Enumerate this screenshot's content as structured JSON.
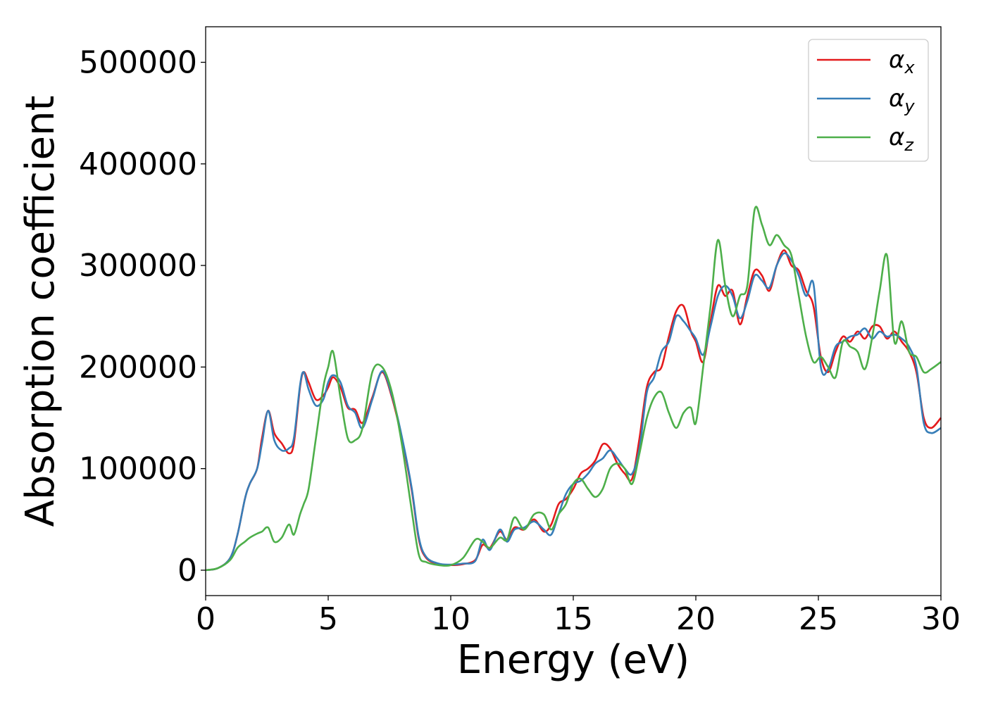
{
  "chart_data": {
    "type": "line",
    "xlabel": "Energy (eV)",
    "ylabel": "Absorption coefficient",
    "xlim": [
      0,
      30
    ],
    "ylim": [
      -25000,
      535000
    ],
    "xticks": [
      0,
      5,
      10,
      15,
      20,
      25,
      30
    ],
    "yticks": [
      0,
      100000,
      200000,
      300000,
      400000,
      500000
    ],
    "grid": false,
    "legend_position": "top-right",
    "series": [
      {
        "name": "α_x",
        "label_base": "α",
        "label_sub": "x",
        "color": "#e41a1c",
        "x": [
          0,
          0.5,
          1.0,
          1.3,
          1.6,
          1.8,
          2.1,
          2.3,
          2.55,
          2.8,
          3.1,
          3.4,
          3.6,
          3.85,
          4.0,
          4.2,
          4.5,
          4.8,
          5.0,
          5.2,
          5.5,
          5.8,
          6.1,
          6.4,
          6.8,
          7.2,
          7.6,
          8.0,
          8.4,
          8.7,
          9.0,
          9.5,
          10.0,
          10.5,
          11.0,
          11.3,
          11.6,
          12.0,
          12.3,
          12.6,
          13.0,
          13.4,
          13.8,
          14.1,
          14.4,
          14.7,
          15.0,
          15.3,
          15.6,
          15.9,
          16.2,
          16.5,
          16.8,
          17.1,
          17.4,
          17.7,
          18.0,
          18.3,
          18.6,
          18.9,
          19.2,
          19.5,
          19.8,
          20.0,
          20.3,
          20.6,
          20.9,
          21.2,
          21.5,
          21.8,
          22.1,
          22.4,
          22.7,
          23.0,
          23.3,
          23.6,
          23.9,
          24.2,
          24.5,
          24.8,
          25.1,
          25.4,
          25.7,
          26.0,
          26.3,
          26.6,
          26.9,
          27.2,
          27.5,
          27.8,
          28.1,
          28.4,
          28.7,
          29.0,
          29.3,
          29.6,
          30.0
        ],
        "values": [
          0,
          2000,
          12000,
          35000,
          70000,
          85000,
          100000,
          130000,
          157000,
          135000,
          125000,
          115000,
          125000,
          180000,
          195000,
          185000,
          168000,
          172000,
          180000,
          190000,
          180000,
          160000,
          158000,
          145000,
          170000,
          195000,
          170000,
          130000,
          80000,
          30000,
          12000,
          6000,
          5000,
          6000,
          10000,
          25000,
          22000,
          38000,
          30000,
          42000,
          40000,
          50000,
          38000,
          45000,
          65000,
          70000,
          80000,
          95000,
          100000,
          108000,
          124000,
          120000,
          105000,
          95000,
          90000,
          130000,
          180000,
          195000,
          200000,
          230000,
          255000,
          260000,
          235000,
          225000,
          205000,
          245000,
          280000,
          270000,
          275000,
          242000,
          270000,
          295000,
          290000,
          275000,
          300000,
          315000,
          300000,
          295000,
          275000,
          260000,
          210000,
          195000,
          215000,
          230000,
          225000,
          235000,
          228000,
          240000,
          240000,
          228000,
          235000,
          225000,
          215000,
          195000,
          150000,
          140000,
          150000
        ]
      },
      {
        "name": "α_y",
        "label_base": "α",
        "label_sub": "y",
        "color": "#377eb8",
        "x": [
          0,
          0.5,
          1.0,
          1.3,
          1.6,
          1.8,
          2.1,
          2.3,
          2.55,
          2.8,
          3.1,
          3.4,
          3.6,
          3.85,
          4.0,
          4.2,
          4.5,
          4.8,
          5.0,
          5.2,
          5.5,
          5.8,
          6.1,
          6.4,
          6.8,
          7.2,
          7.6,
          8.0,
          8.4,
          8.7,
          9.0,
          9.5,
          10.0,
          10.5,
          11.0,
          11.3,
          11.6,
          12.0,
          12.3,
          12.6,
          13.0,
          13.4,
          13.8,
          14.1,
          14.4,
          14.7,
          15.0,
          15.3,
          15.6,
          15.9,
          16.2,
          16.5,
          16.8,
          17.1,
          17.4,
          17.7,
          18.0,
          18.3,
          18.6,
          18.9,
          19.2,
          19.5,
          19.8,
          20.0,
          20.3,
          20.6,
          20.9,
          21.2,
          21.5,
          21.8,
          22.1,
          22.4,
          22.7,
          23.0,
          23.3,
          23.6,
          23.9,
          24.2,
          24.5,
          24.8,
          25.1,
          25.4,
          25.7,
          26.0,
          26.3,
          26.6,
          26.9,
          27.2,
          27.5,
          27.8,
          28.1,
          28.4,
          28.7,
          29.0,
          29.3,
          29.6,
          30.0
        ],
        "values": [
          0,
          2000,
          12000,
          35000,
          70000,
          85000,
          100000,
          125000,
          157000,
          128000,
          118000,
          120000,
          130000,
          182000,
          195000,
          178000,
          162000,
          168000,
          185000,
          192000,
          185000,
          162000,
          155000,
          140000,
          168000,
          196000,
          172000,
          132000,
          82000,
          32000,
          13000,
          6500,
          5500,
          6500,
          9000,
          30000,
          20000,
          40000,
          28000,
          40000,
          42000,
          48000,
          40000,
          35000,
          55000,
          75000,
          85000,
          88000,
          95000,
          105000,
          110000,
          118000,
          110000,
          100000,
          95000,
          120000,
          175000,
          190000,
          215000,
          225000,
          250000,
          245000,
          235000,
          228000,
          212000,
          240000,
          270000,
          280000,
          270000,
          248000,
          265000,
          290000,
          285000,
          278000,
          300000,
          312000,
          305000,
          290000,
          270000,
          282000,
          200000,
          198000,
          220000,
          225000,
          230000,
          232000,
          238000,
          228000,
          235000,
          230000,
          232000,
          228000,
          220000,
          200000,
          145000,
          135000,
          140000
        ]
      },
      {
        "name": "α_z",
        "label_base": "α",
        "label_sub": "z",
        "color": "#4daf4a",
        "x": [
          0,
          0.5,
          1.0,
          1.3,
          1.6,
          1.8,
          2.1,
          2.3,
          2.55,
          2.8,
          3.1,
          3.4,
          3.6,
          3.85,
          4.0,
          4.2,
          4.5,
          4.8,
          5.0,
          5.2,
          5.5,
          5.8,
          6.1,
          6.4,
          6.8,
          7.2,
          7.6,
          8.0,
          8.4,
          8.7,
          9.0,
          9.5,
          10.0,
          10.5,
          11.0,
          11.3,
          11.6,
          12.0,
          12.3,
          12.6,
          13.0,
          13.4,
          13.8,
          14.1,
          14.4,
          14.7,
          15.0,
          15.3,
          15.6,
          15.9,
          16.2,
          16.5,
          16.8,
          17.1,
          17.4,
          17.7,
          18.0,
          18.3,
          18.6,
          18.9,
          19.2,
          19.5,
          19.8,
          20.0,
          20.3,
          20.6,
          20.9,
          21.2,
          21.5,
          21.8,
          22.1,
          22.4,
          22.7,
          23.0,
          23.3,
          23.6,
          23.9,
          24.2,
          24.5,
          24.8,
          25.1,
          25.4,
          25.7,
          26.0,
          26.3,
          26.6,
          26.9,
          27.2,
          27.5,
          27.8,
          28.1,
          28.4,
          28.7,
          29.0,
          29.3,
          29.6,
          30.0
        ],
        "values": [
          0,
          2000,
          10000,
          22000,
          28000,
          32000,
          36000,
          38000,
          42000,
          28000,
          32000,
          45000,
          35000,
          55000,
          65000,
          80000,
          130000,
          180000,
          200000,
          215000,
          170000,
          130000,
          128000,
          140000,
          195000,
          200000,
          175000,
          125000,
          60000,
          15000,
          8000,
          5000,
          5000,
          12000,
          30000,
          28000,
          22000,
          32000,
          30000,
          52000,
          40000,
          55000,
          55000,
          40000,
          55000,
          65000,
          85000,
          90000,
          80000,
          72000,
          80000,
          100000,
          105000,
          100000,
          85000,
          115000,
          150000,
          170000,
          175000,
          155000,
          140000,
          155000,
          160000,
          145000,
          200000,
          260000,
          325000,
          280000,
          250000,
          270000,
          280000,
          355000,
          340000,
          320000,
          330000,
          320000,
          310000,
          270000,
          230000,
          205000,
          210000,
          200000,
          190000,
          225000,
          220000,
          215000,
          198000,
          230000,
          275000,
          310000,
          225000,
          245000,
          215000,
          210000,
          195000,
          198000,
          205000
        ]
      }
    ]
  }
}
